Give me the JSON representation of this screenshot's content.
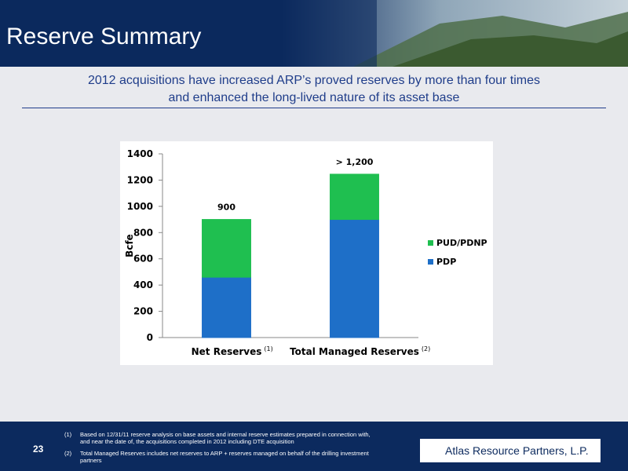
{
  "header": {
    "title": "Reserve Summary"
  },
  "subtitle": [
    "2012 acquisitions have increased ARP’s proved reserves by more than four times",
    "and enhanced the long-lived nature of its asset base"
  ],
  "chart_data": {
    "type": "stacked_bar",
    "categories": [
      "Net Reserves",
      "Total Managed Reserves"
    ],
    "category_notes": [
      "(1)",
      "(2)"
    ],
    "series": [
      {
        "name": "PDP",
        "color": "#1e6fc8",
        "values": [
          460,
          900
        ]
      },
      {
        "name": "PUD/PDNP",
        "color": "#1fbf50",
        "values": [
          440,
          345
        ]
      }
    ],
    "total_labels": [
      "900",
      "> 1,200"
    ],
    "y_label": "Bcfe",
    "ylim": [
      0,
      1400
    ],
    "yticks": [
      0,
      200,
      400,
      600,
      800,
      1000,
      1200,
      1400
    ],
    "legend_position": "right"
  },
  "footer": {
    "page_number": "23",
    "footnotes": [
      {
        "marker": "(1)",
        "text": "Based on 12/31/11 reserve analysis on base assets and internal reserve estimates prepared in connection with, and near the date of, the acquisitions completed in 2012 including DTE acquisition"
      },
      {
        "marker": "(2)",
        "text": "Total Managed Reserves includes net reserves to ARP + reserves managed on behalf of the drilling investment partners"
      }
    ],
    "logo": "Atlas Resource Partners, L.P."
  }
}
